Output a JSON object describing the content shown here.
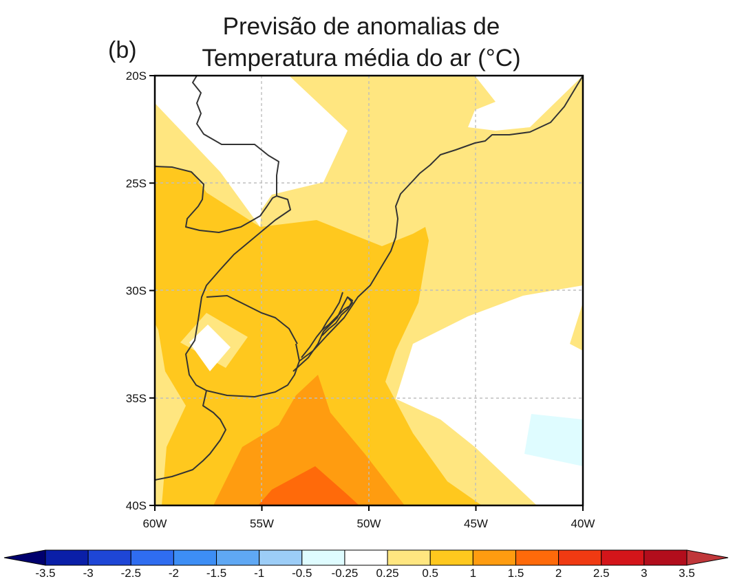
{
  "figure": {
    "panel_label": "(b)",
    "title_line1": "Previsão de anomalias de",
    "title_line2": "Temperatura média do ar (°C)"
  },
  "map": {
    "lon_range": [
      -60,
      -40
    ],
    "lat_range": [
      -40,
      -20
    ],
    "x_ticks": [
      {
        "lon": -60,
        "label": "60W"
      },
      {
        "lon": -55,
        "label": "55W"
      },
      {
        "lon": -50,
        "label": "50W"
      },
      {
        "lon": -45,
        "label": "45W"
      },
      {
        "lon": -40,
        "label": "40W"
      }
    ],
    "y_ticks": [
      {
        "lat": -20,
        "label": "20S"
      },
      {
        "lat": -25,
        "label": "25S"
      },
      {
        "lat": -30,
        "label": "30S"
      },
      {
        "lat": -35,
        "label": "35S"
      },
      {
        "lat": -40,
        "label": "40S"
      }
    ],
    "gridlines": "dashed"
  },
  "colorbar": {
    "levels": [
      "-3.5",
      "-3",
      "-2.5",
      "-2",
      "-1.5",
      "-1",
      "-0.5",
      "-0.25",
      "0.25",
      "0.5",
      "1",
      "1.5",
      "2",
      "2.5",
      "3",
      "3.5"
    ],
    "colors": [
      "#0a1fa8",
      "#1e46d6",
      "#2f6df0",
      "#3d8ef5",
      "#5fa8f4",
      "#9ccdf7",
      "#dffcff",
      "#ffffff",
      "#ffe680",
      "#ffc81e",
      "#ff9c10",
      "#ff6a0a",
      "#f03a12",
      "#d4151a",
      "#b20d1c"
    ],
    "low_end_color": "#00006e",
    "high_end_color": "#c0373a"
  },
  "fill_colors": {
    "white": "#ffffff",
    "yellow": "#ffe680",
    "gold": "#ffc81e",
    "orange": "#ff9c10",
    "dark_orange": "#ff6a0a",
    "light_cyan": "#dffcff"
  }
}
